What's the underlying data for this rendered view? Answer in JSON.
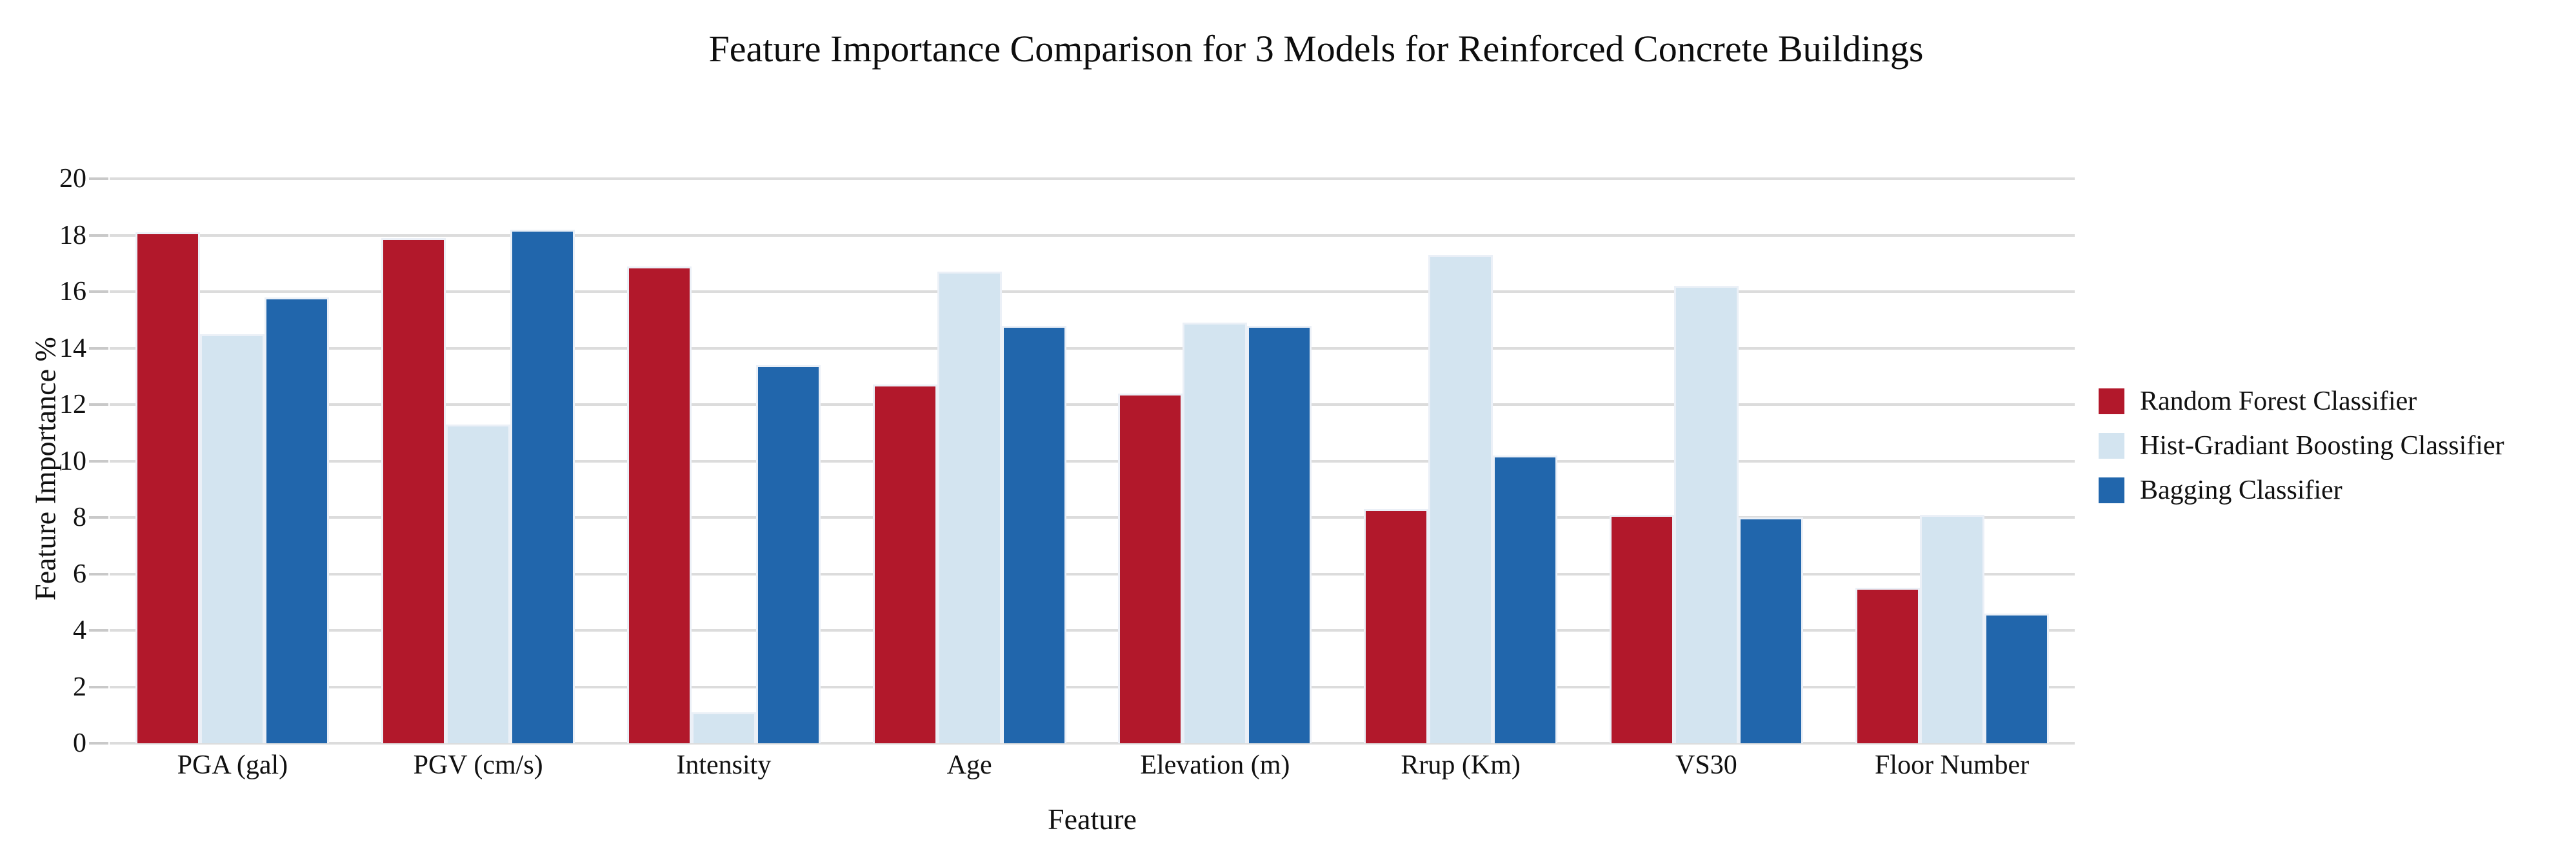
{
  "chart_data": {
    "type": "bar",
    "title": "Feature Importance Comparison for 3 Models for Reinforced Concrete Buildings",
    "xlabel": "Feature",
    "ylabel": "Feature Importance %",
    "ylim": [
      0,
      20
    ],
    "ytick_step": 2,
    "yticks": [
      0,
      2,
      4,
      6,
      8,
      10,
      12,
      14,
      16,
      18,
      20
    ],
    "grid": "horizontal-only",
    "legend_position": "center-right",
    "categories": [
      "PGA (gal)",
      "PGV (cm/s)",
      "Intensity",
      "Age",
      "Elevation (m)",
      "Rrup (Km)",
      "VS30",
      "Floor Number"
    ],
    "series": [
      {
        "name": "Random Forest Classifier",
        "color": "#B2182B",
        "values": [
          18.1,
          17.9,
          16.9,
          12.7,
          12.4,
          8.3,
          8.1,
          5.5
        ]
      },
      {
        "name": "Hist-Gradiant Boosting Classifier",
        "color": "#D3E4F0",
        "values": [
          14.5,
          11.3,
          1.1,
          16.7,
          14.9,
          17.3,
          16.2,
          8.1
        ]
      },
      {
        "name": "Bagging Classifier",
        "color": "#2166AC",
        "values": [
          15.8,
          18.2,
          13.4,
          14.8,
          14.8,
          10.2,
          8.0,
          4.6
        ]
      }
    ]
  }
}
